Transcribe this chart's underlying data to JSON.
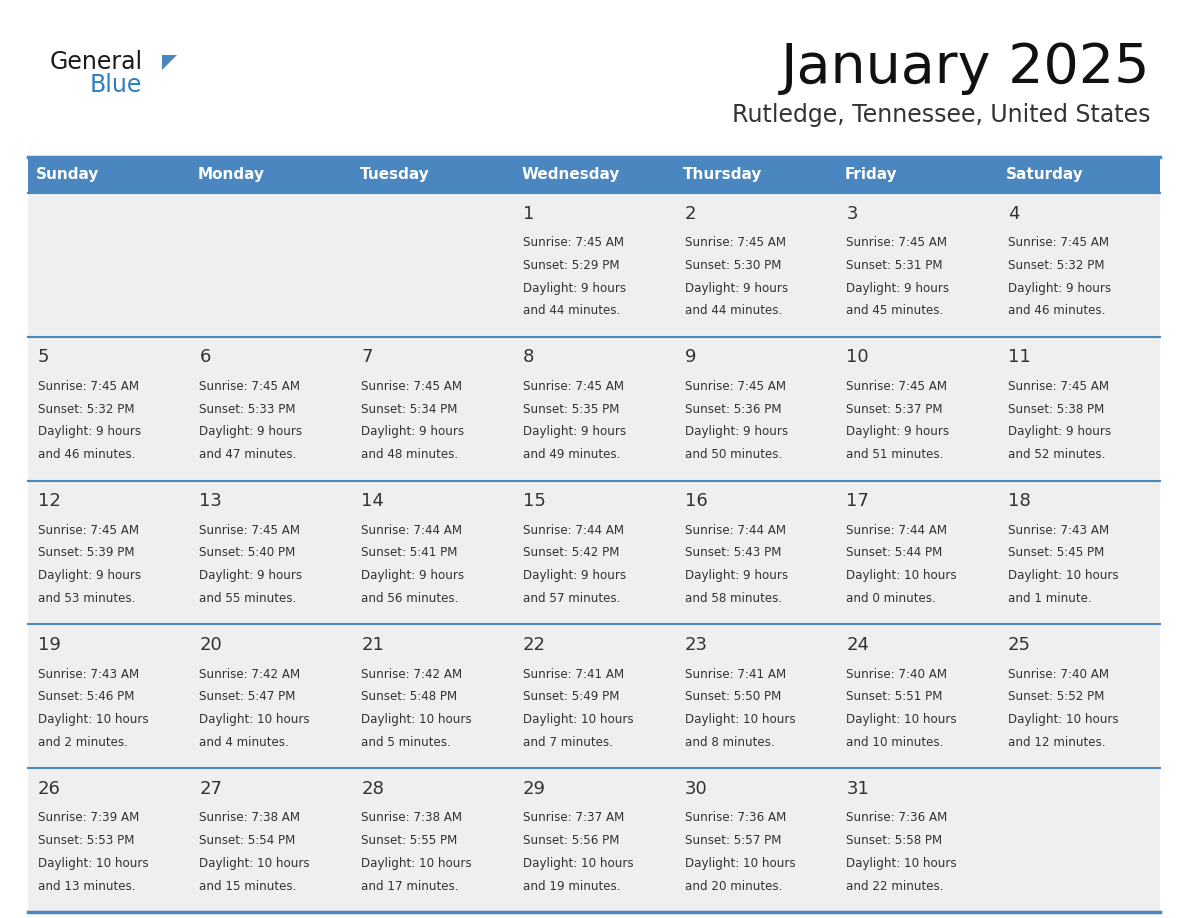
{
  "title": "January 2025",
  "subtitle": "Rutledge, Tennessee, United States",
  "header_bg": "#4a86c0",
  "header_text_color": "#ffffff",
  "day_names": [
    "Sunday",
    "Monday",
    "Tuesday",
    "Wednesday",
    "Thursday",
    "Friday",
    "Saturday"
  ],
  "row_bg": "#efefef",
  "cell_border_color": "#4a86c0",
  "day_num_color": "#333333",
  "info_color": "#333333",
  "logo_general_color": "#1a1a1a",
  "logo_blue_color": "#2e7fc0",
  "logo_triangle_color": "#4a86c0",
  "calendar": [
    [
      null,
      null,
      null,
      {
        "day": 1,
        "sunrise": "7:45 AM",
        "sunset": "5:29 PM",
        "daylight": "9 hours and 44 minutes."
      },
      {
        "day": 2,
        "sunrise": "7:45 AM",
        "sunset": "5:30 PM",
        "daylight": "9 hours and 44 minutes."
      },
      {
        "day": 3,
        "sunrise": "7:45 AM",
        "sunset": "5:31 PM",
        "daylight": "9 hours and 45 minutes."
      },
      {
        "day": 4,
        "sunrise": "7:45 AM",
        "sunset": "5:32 PM",
        "daylight": "9 hours and 46 minutes."
      }
    ],
    [
      {
        "day": 5,
        "sunrise": "7:45 AM",
        "sunset": "5:32 PM",
        "daylight": "9 hours and 46 minutes."
      },
      {
        "day": 6,
        "sunrise": "7:45 AM",
        "sunset": "5:33 PM",
        "daylight": "9 hours and 47 minutes."
      },
      {
        "day": 7,
        "sunrise": "7:45 AM",
        "sunset": "5:34 PM",
        "daylight": "9 hours and 48 minutes."
      },
      {
        "day": 8,
        "sunrise": "7:45 AM",
        "sunset": "5:35 PM",
        "daylight": "9 hours and 49 minutes."
      },
      {
        "day": 9,
        "sunrise": "7:45 AM",
        "sunset": "5:36 PM",
        "daylight": "9 hours and 50 minutes."
      },
      {
        "day": 10,
        "sunrise": "7:45 AM",
        "sunset": "5:37 PM",
        "daylight": "9 hours and 51 minutes."
      },
      {
        "day": 11,
        "sunrise": "7:45 AM",
        "sunset": "5:38 PM",
        "daylight": "9 hours and 52 minutes."
      }
    ],
    [
      {
        "day": 12,
        "sunrise": "7:45 AM",
        "sunset": "5:39 PM",
        "daylight": "9 hours and 53 minutes."
      },
      {
        "day": 13,
        "sunrise": "7:45 AM",
        "sunset": "5:40 PM",
        "daylight": "9 hours and 55 minutes."
      },
      {
        "day": 14,
        "sunrise": "7:44 AM",
        "sunset": "5:41 PM",
        "daylight": "9 hours and 56 minutes."
      },
      {
        "day": 15,
        "sunrise": "7:44 AM",
        "sunset": "5:42 PM",
        "daylight": "9 hours and 57 minutes."
      },
      {
        "day": 16,
        "sunrise": "7:44 AM",
        "sunset": "5:43 PM",
        "daylight": "9 hours and 58 minutes."
      },
      {
        "day": 17,
        "sunrise": "7:44 AM",
        "sunset": "5:44 PM",
        "daylight": "10 hours and 0 minutes."
      },
      {
        "day": 18,
        "sunrise": "7:43 AM",
        "sunset": "5:45 PM",
        "daylight": "10 hours and 1 minute."
      }
    ],
    [
      {
        "day": 19,
        "sunrise": "7:43 AM",
        "sunset": "5:46 PM",
        "daylight": "10 hours and 2 minutes."
      },
      {
        "day": 20,
        "sunrise": "7:42 AM",
        "sunset": "5:47 PM",
        "daylight": "10 hours and 4 minutes."
      },
      {
        "day": 21,
        "sunrise": "7:42 AM",
        "sunset": "5:48 PM",
        "daylight": "10 hours and 5 minutes."
      },
      {
        "day": 22,
        "sunrise": "7:41 AM",
        "sunset": "5:49 PM",
        "daylight": "10 hours and 7 minutes."
      },
      {
        "day": 23,
        "sunrise": "7:41 AM",
        "sunset": "5:50 PM",
        "daylight": "10 hours and 8 minutes."
      },
      {
        "day": 24,
        "sunrise": "7:40 AM",
        "sunset": "5:51 PM",
        "daylight": "10 hours and 10 minutes."
      },
      {
        "day": 25,
        "sunrise": "7:40 AM",
        "sunset": "5:52 PM",
        "daylight": "10 hours and 12 minutes."
      }
    ],
    [
      {
        "day": 26,
        "sunrise": "7:39 AM",
        "sunset": "5:53 PM",
        "daylight": "10 hours and 13 minutes."
      },
      {
        "day": 27,
        "sunrise": "7:38 AM",
        "sunset": "5:54 PM",
        "daylight": "10 hours and 15 minutes."
      },
      {
        "day": 28,
        "sunrise": "7:38 AM",
        "sunset": "5:55 PM",
        "daylight": "10 hours and 17 minutes."
      },
      {
        "day": 29,
        "sunrise": "7:37 AM",
        "sunset": "5:56 PM",
        "daylight": "10 hours and 19 minutes."
      },
      {
        "day": 30,
        "sunrise": "7:36 AM",
        "sunset": "5:57 PM",
        "daylight": "10 hours and 20 minutes."
      },
      {
        "day": 31,
        "sunrise": "7:36 AM",
        "sunset": "5:58 PM",
        "daylight": "10 hours and 22 minutes."
      },
      null
    ]
  ]
}
